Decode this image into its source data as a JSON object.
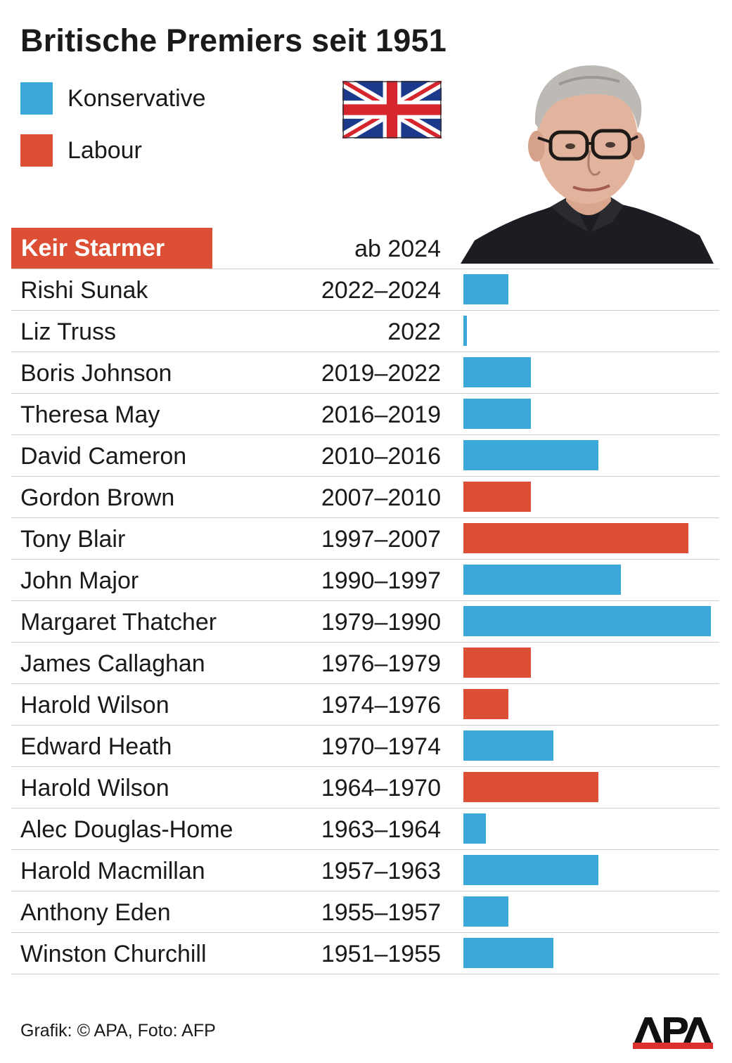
{
  "title": "Britische Premiers seit 1951",
  "legend": [
    {
      "label": "Konservative",
      "color": "#3aa9d9"
    },
    {
      "label": "Labour",
      "color": "#dd4f35"
    }
  ],
  "current": {
    "name": "Keir Starmer",
    "years": "ab 2024",
    "party": "Labour",
    "color": "#dd4f35"
  },
  "chart_data": {
    "type": "bar",
    "orientation": "horizontal",
    "value_unit": "years in office",
    "series": [
      {
        "name": "Konservative",
        "color": "#3aa9d9"
      },
      {
        "name": "Labour",
        "color": "#dd4f35"
      }
    ],
    "rows": [
      {
        "name": "Rishi Sunak",
        "years": "2022–2024",
        "start": 2022,
        "end": 2024,
        "party": "Konservative"
      },
      {
        "name": "Liz Truss",
        "years": "2022",
        "start": 2022,
        "end": 2022.1,
        "party": "Konservative"
      },
      {
        "name": "Boris Johnson",
        "years": "2019–2022",
        "start": 2019,
        "end": 2022,
        "party": "Konservative"
      },
      {
        "name": "Theresa May",
        "years": "2016–2019",
        "start": 2016,
        "end": 2019,
        "party": "Konservative"
      },
      {
        "name": "David Cameron",
        "years": "2010–2016",
        "start": 2010,
        "end": 2016,
        "party": "Konservative"
      },
      {
        "name": "Gordon Brown",
        "years": "2007–2010",
        "start": 2007,
        "end": 2010,
        "party": "Labour"
      },
      {
        "name": "Tony Blair",
        "years": "1997–2007",
        "start": 1997,
        "end": 2007,
        "party": "Labour"
      },
      {
        "name": "John Major",
        "years": "1990–1997",
        "start": 1990,
        "end": 1997,
        "party": "Konservative"
      },
      {
        "name": "Margaret Thatcher",
        "years": "1979–1990",
        "start": 1979,
        "end": 1990,
        "party": "Konservative"
      },
      {
        "name": "James Callaghan",
        "years": "1976–1979",
        "start": 1976,
        "end": 1979,
        "party": "Labour"
      },
      {
        "name": "Harold Wilson",
        "years": "1974–1976",
        "start": 1974,
        "end": 1976,
        "party": "Labour"
      },
      {
        "name": "Edward Heath",
        "years": "1970–1974",
        "start": 1970,
        "end": 1974,
        "party": "Konservative"
      },
      {
        "name": "Harold Wilson",
        "years": "1964–1970",
        "start": 1964,
        "end": 1970,
        "party": "Labour"
      },
      {
        "name": "Alec Douglas-Home",
        "years": "1963–1964",
        "start": 1963,
        "end": 1964,
        "party": "Konservative"
      },
      {
        "name": "Harold Macmillan",
        "years": "1957–1963",
        "start": 1957,
        "end": 1963,
        "party": "Konservative"
      },
      {
        "name": "Anthony Eden",
        "years": "1955–1957",
        "start": 1955,
        "end": 1957,
        "party": "Konservative"
      },
      {
        "name": "Winston Churchill",
        "years": "1951–1955",
        "start": 1951,
        "end": 1955,
        "party": "Konservative"
      }
    ]
  },
  "credit": "Grafik: © APA, Foto: AFP",
  "logo_text": "APA",
  "icons": {
    "flag": "union-jack-flag-icon",
    "photo": "keir-starmer-portrait",
    "logo": "apa-logo"
  }
}
